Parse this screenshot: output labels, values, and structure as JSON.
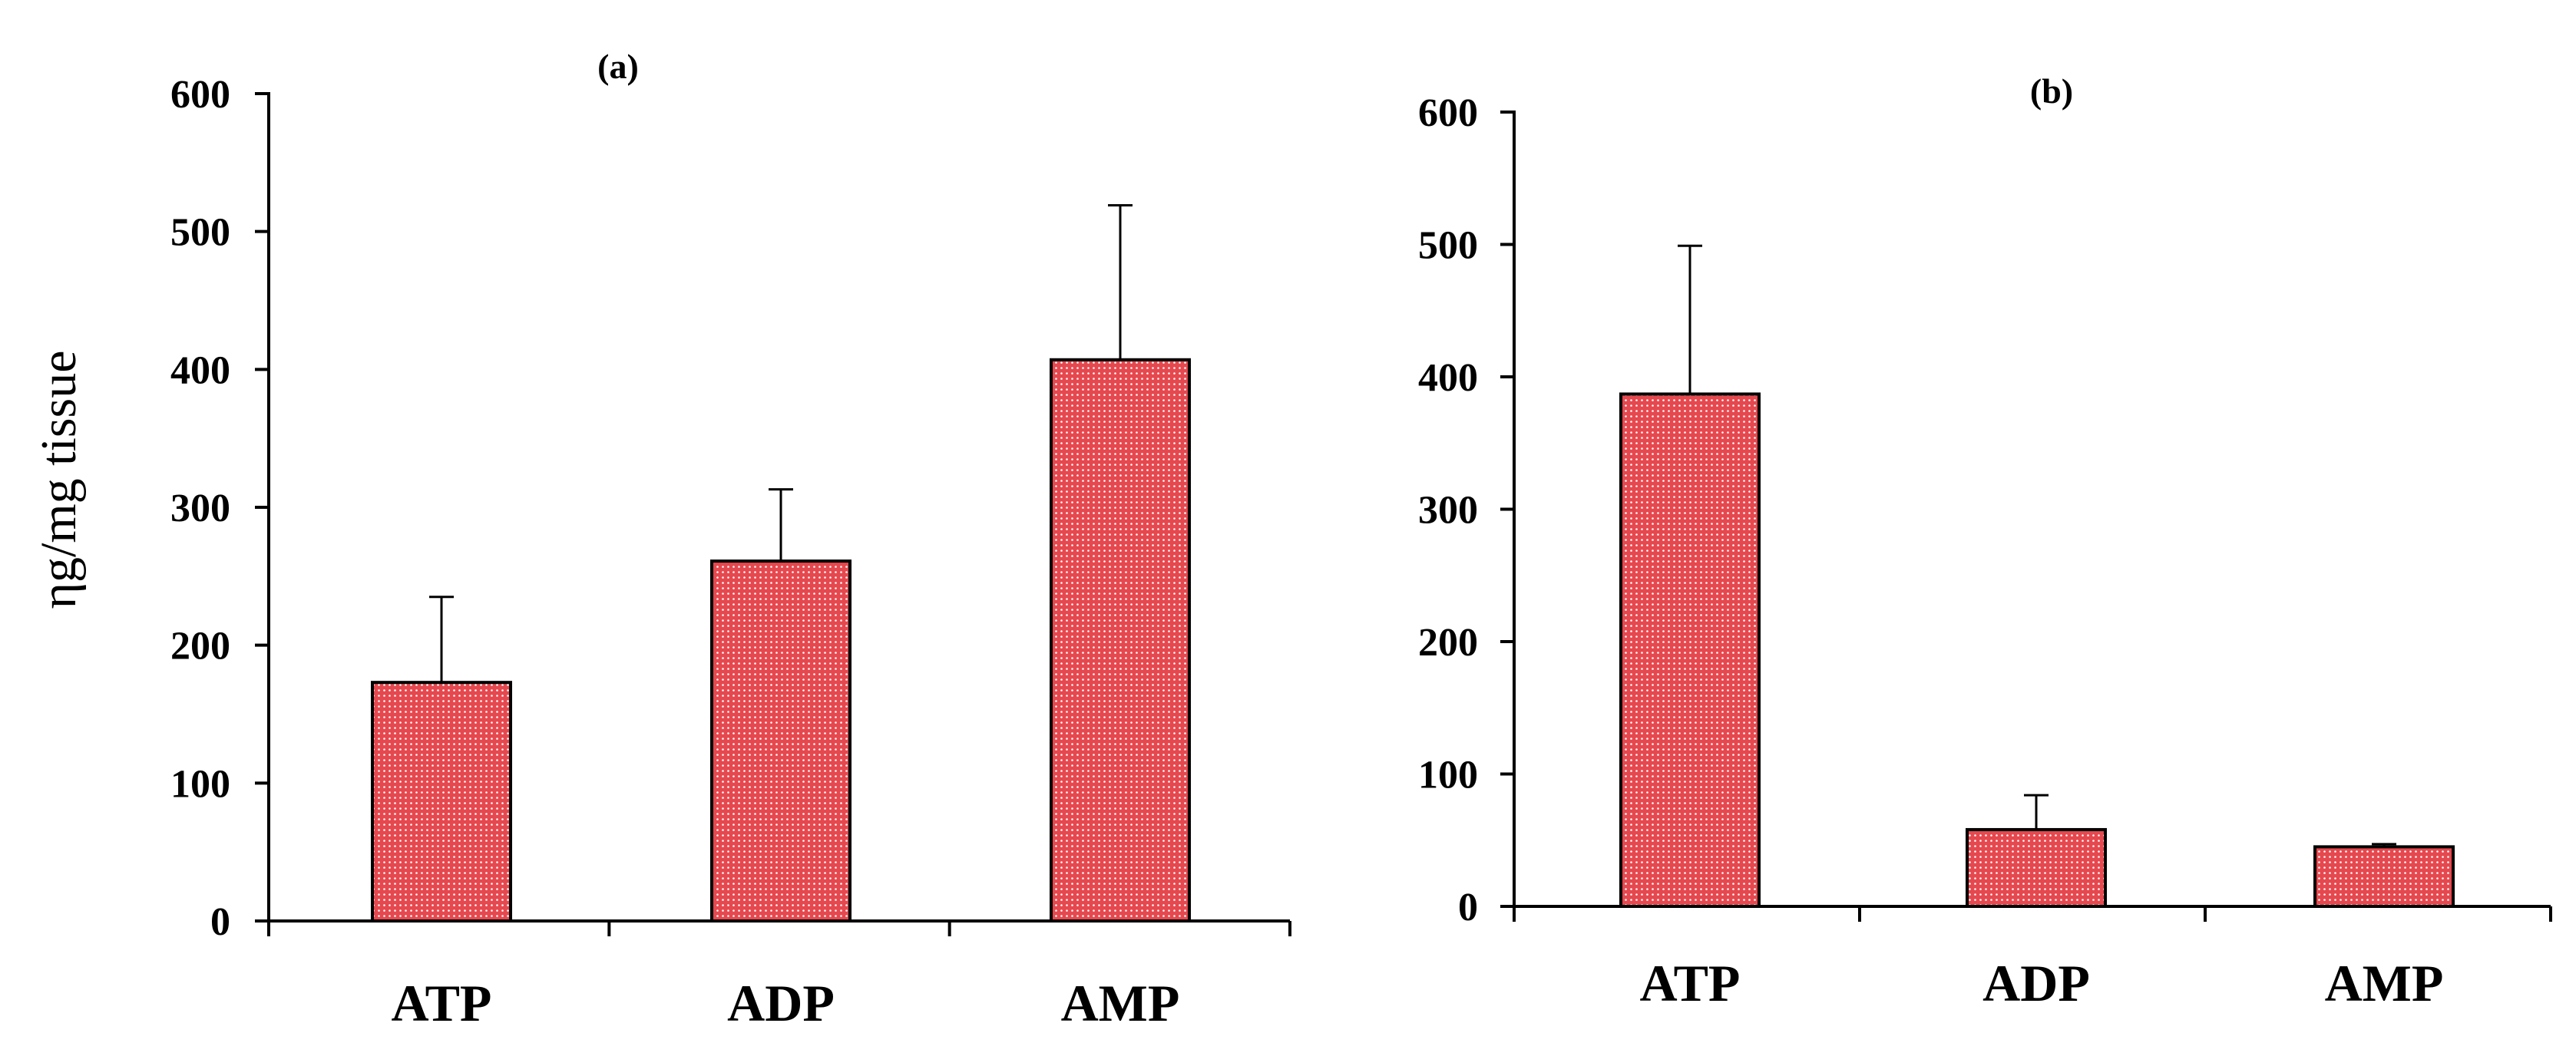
{
  "chart_data": [
    {
      "type": "bar",
      "title": "(a)",
      "xlabel": "",
      "ylabel": "ηg/mg tissue",
      "categories": [
        "ATP",
        "ADP",
        "AMP"
      ],
      "values": [
        173,
        261,
        407
      ],
      "errors": [
        62,
        52,
        112
      ],
      "ylim": [
        0,
        600
      ],
      "yticks": [
        0,
        100,
        200,
        300,
        400,
        500,
        600
      ],
      "grid": false,
      "bar_color": "#e84a4f"
    },
    {
      "type": "bar",
      "title": "(b)",
      "xlabel": "",
      "ylabel": "",
      "categories": [
        "ATP",
        "ADP",
        "AMP"
      ],
      "values": [
        387,
        58,
        45
      ],
      "errors": [
        112,
        26,
        2
      ],
      "ylim": [
        0,
        600
      ],
      "yticks": [
        0,
        100,
        200,
        300,
        400,
        500,
        600
      ],
      "grid": false,
      "bar_color": "#e84a4f"
    }
  ],
  "colors": {
    "bar_fill": "#e84a4f",
    "bar_dot": "#ffffff",
    "axis": "#000000"
  }
}
